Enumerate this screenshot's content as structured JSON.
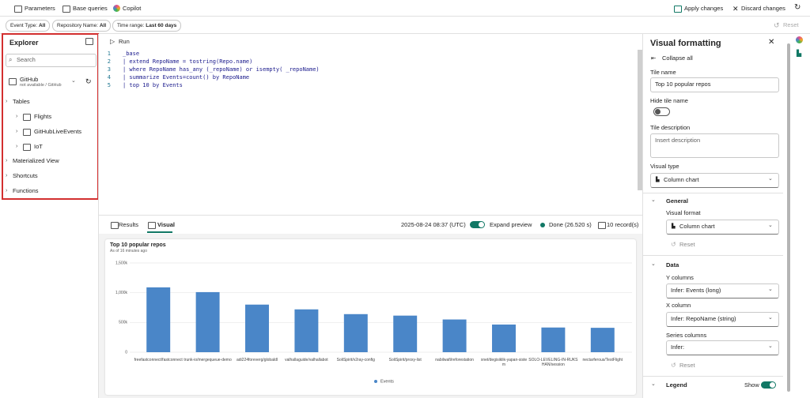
{
  "toolbar": {
    "parameters": "Parameters",
    "base_queries": "Base queries",
    "copilot": "Copilot",
    "apply": "Apply changes",
    "discard": "Discard changes",
    "reset": "Reset"
  },
  "filters": [
    {
      "label": "Event Type:",
      "value": "All"
    },
    {
      "label": "Repository Name:",
      "value": "All"
    },
    {
      "label": "Time range:",
      "value": "Last 60 days"
    }
  ],
  "explorer": {
    "title": "Explorer",
    "search": "Search",
    "source": {
      "name": "GitHub",
      "status": "not available / GitHub"
    },
    "tables": "Tables",
    "table_items": [
      "Flights",
      "GitHubLiveEvents",
      "IoT"
    ],
    "sections": [
      "Materialized View",
      "Shortcuts",
      "Functions"
    ]
  },
  "editor": {
    "run": "Run",
    "line_numbers": [
      1,
      2,
      3,
      4,
      5
    ],
    "lines": [
      "_base",
      "| extend RepoName = tostring(Repo.name)",
      "| where RepoName has_any (_repoName) or isempty( _repoName)",
      "| summarize Events=count() by RepoName",
      "| top 10 by Events"
    ]
  },
  "results": {
    "tabs": [
      "Results",
      "Visual"
    ],
    "timestamp": "2025-08-24 08:37 (UTC)",
    "expand": "Expand preview",
    "status": "Done (26.520 s)",
    "records": "10 record(s)"
  },
  "chart_data": {
    "type": "bar",
    "title": "Top 10 popular repos",
    "subtitle": "As of 16 minutes ago",
    "categories": [
      "freefastconnect/fastconnect",
      "trunk-io/mergequeue-demo",
      "adi224foreverg/globaldl",
      "valhallaguide/valhallabot",
      "SoliSpirit/v2ray-config",
      "SoliSpirit/proxy-list",
      "nabilwafi/reforestation",
      "xnet/degisiklik-yapan-sistem",
      "SOLO-LEVELING-IN-RUKSHAN/session",
      "nectarferous/TestFlight"
    ],
    "series": [
      {
        "name": "Events",
        "color": "#4a86c8",
        "values": [
          1090000,
          1010000,
          800000,
          720000,
          640000,
          615000,
          550000,
          465000,
          415000,
          410000
        ]
      }
    ],
    "ylim": [
      0,
      1500000
    ],
    "yticks": [
      0,
      {
        "value": 500000,
        "label": "500k"
      },
      {
        "value": 1000000,
        "label": "1,000k"
      },
      {
        "value": 1500000,
        "label": "1,500k"
      }
    ],
    "grid": true,
    "legend": "bottom"
  },
  "formatting": {
    "title": "Visual formatting",
    "collapse": "Collapse all",
    "tile_name_label": "Tile name",
    "tile_name": "Top 10 popular repos",
    "hide_tile_name": "Hide tile name",
    "tile_description": "Tile description",
    "description_placeholder": "Insert description",
    "visual_type_label": "Visual type",
    "visual_type": "Column chart",
    "general": "General",
    "visual_format_label": "Visual format",
    "visual_format": "Column chart",
    "reset": "Reset",
    "data": "Data",
    "y_columns_label": "Y columns",
    "y_columns": "Infer: Events (long)",
    "x_column_label": "X column",
    "x_column": "Infer: RepoName (string)",
    "series_columns_label": "Series columns",
    "series_columns": "Infer:",
    "reset2": "Reset",
    "legend": "Legend",
    "legend_show": "Show"
  }
}
